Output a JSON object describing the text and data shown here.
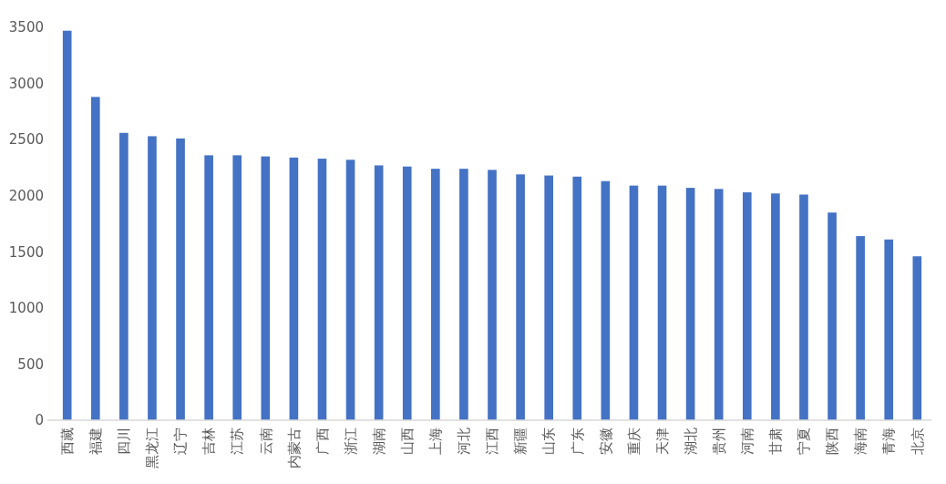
{
  "chart_data": {
    "type": "bar",
    "categories": [
      "西藏",
      "福建",
      "四川",
      "黑龙江",
      "辽宁",
      "吉林",
      "江苏",
      "云南",
      "内蒙古",
      "广西",
      "浙江",
      "湖南",
      "山西",
      "上海",
      "河北",
      "江西",
      "新疆",
      "山东",
      "广东",
      "安徽",
      "重庆",
      "天津",
      "湖北",
      "贵州",
      "河南",
      "甘肃",
      "宁夏",
      "陕西",
      "海南",
      "青海",
      "北京"
    ],
    "values": [
      3470,
      2880,
      2560,
      2530,
      2510,
      2360,
      2360,
      2350,
      2340,
      2330,
      2320,
      2270,
      2260,
      2240,
      2240,
      2230,
      2190,
      2180,
      2170,
      2130,
      2090,
      2090,
      2070,
      2060,
      2030,
      2020,
      2010,
      1850,
      1640,
      1610,
      1460
    ],
    "color": "#4472c4",
    "ylim": [
      0,
      3500
    ],
    "yticks": [
      0,
      500,
      1000,
      1500,
      2000,
      2500,
      3000,
      3500
    ]
  }
}
